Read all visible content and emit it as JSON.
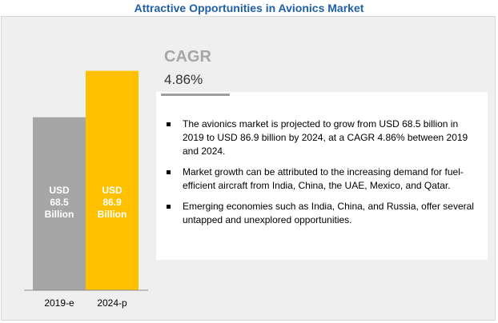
{
  "title": "Attractive Opportunities in Avionics Market",
  "cagr": {
    "label": "CAGR",
    "value": "4.86%"
  },
  "chart_data": {
    "type": "bar",
    "categories": [
      "2019-e",
      "2024-p"
    ],
    "values": [
      68.5,
      86.9
    ],
    "colors": [
      "#a6a6a6",
      "#ffc000"
    ],
    "bar_labels": [
      [
        "USD",
        "68.5",
        "Billion"
      ],
      [
        "USD",
        "86.9",
        "Billion"
      ]
    ],
    "ylim": [
      0,
      95
    ]
  },
  "bullets": [
    "The avionics market is projected to grow from USD 68.5 billion in 2019 to USD 86.9 billion by 2024, at a CAGR 4.86% between 2019 and 2024.",
    "Market growth can be attributed to the increasing demand for fuel-efficient aircraft from India, China, the UAE, Mexico, and Qatar.",
    "Emerging economies such as India, China, and Russia, offer several untapped and unexplored opportunities."
  ]
}
